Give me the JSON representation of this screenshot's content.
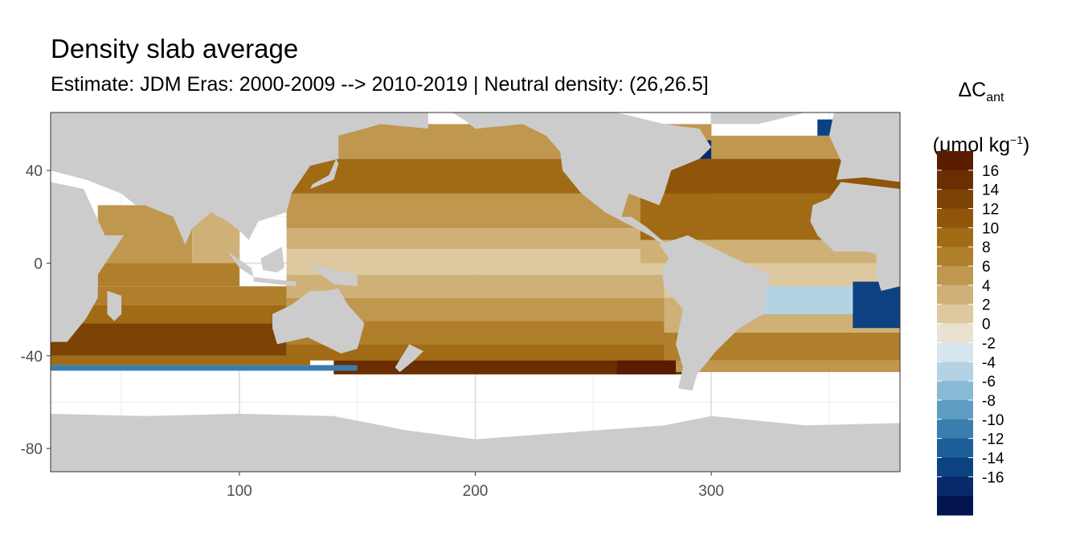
{
  "title": "Density slab average",
  "subtitle": "Estimate: JDM Eras: 2000-2009 --> 2010-2019 | Neutral density: (26,26.5]",
  "legend": {
    "title_main": "ΔC",
    "title_sub": "ant",
    "unit_open": "(μmol kg",
    "unit_sup": "−1",
    "unit_close": ")",
    "labels": [
      "16",
      "14",
      "12",
      "10",
      "8",
      "6",
      "4",
      "2",
      "0",
      "-2",
      "-4",
      "-6",
      "-8",
      "-10",
      "-12",
      "-14",
      "-16"
    ],
    "colors": [
      "#5a1b00",
      "#6b2e02",
      "#7d4205",
      "#8f5509",
      "#a16a15",
      "#b07f2c",
      "#bf974f",
      "#cfb077",
      "#ddc8a0",
      "#ebe1d0",
      "#d6e6ee",
      "#b3d3e5",
      "#88b9d5",
      "#5f9cc2",
      "#3a7daf",
      "#1d5e98",
      "#0d4282",
      "#072a69",
      "#02154f"
    ]
  },
  "chart_data": {
    "type": "heatmap",
    "title": "Density slab average",
    "subtitle": "Estimate: JDM Eras: 2000-2009 --> 2010-2019 | Neutral density: (26,26.5]",
    "xlabel": "",
    "ylabel": "",
    "xlim": [
      20,
      380
    ],
    "ylim": [
      -90,
      65
    ],
    "x_ticks": [
      100,
      200,
      300
    ],
    "y_ticks": [
      40,
      0,
      -40,
      -80
    ],
    "grid": true,
    "legend_position": "right",
    "value_range": [
      -18,
      18
    ],
    "color_scale": "diverging brown (positive) to blue (negative)",
    "land_color": "#cccccc",
    "no_data_color": "#ffffff",
    "regions": [
      {
        "name": "Indian Ocean south of 20S",
        "value": 13
      },
      {
        "name": "Indian Ocean north",
        "value": 7
      },
      {
        "name": "Arabian Sea",
        "value": 2
      },
      {
        "name": "South Pacific 40-50S",
        "value": 15
      },
      {
        "name": "South Pacific subtropics",
        "value": 7
      },
      {
        "name": "Equatorial Pacific",
        "value": 1
      },
      {
        "name": "North Pacific subtropics",
        "value": 6
      },
      {
        "name": "North Pacific 30-40N",
        "value": 9
      },
      {
        "name": "North Atlantic subtropics",
        "value": 12
      },
      {
        "name": "South Atlantic",
        "value": 8
      },
      {
        "name": "Southern Ocean edge",
        "value": -10
      },
      {
        "name": "South Atlantic east margin",
        "value": -14
      },
      {
        "name": "Labrador / Nordic seas",
        "value": -16
      }
    ]
  }
}
